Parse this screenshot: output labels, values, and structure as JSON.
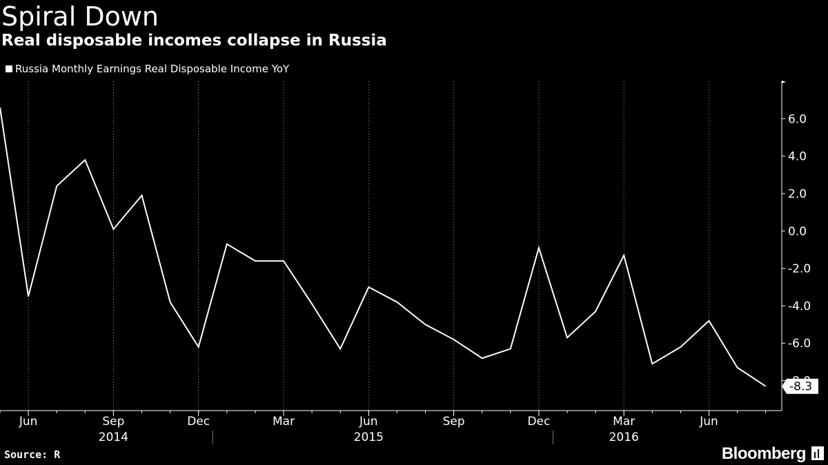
{
  "header": {
    "title": "Spiral Down",
    "subtitle": "Real disposable incomes collapse in Russia"
  },
  "footer": {
    "source": "Source: R",
    "brand": "Bloomberg"
  },
  "colors": {
    "background": "#000000",
    "line": "#ffffff",
    "grid": "#9a9a9a"
  },
  "chart_data": {
    "type": "line",
    "title": "Spiral Down",
    "subtitle": "Real disposable incomes collapse in Russia",
    "series": [
      {
        "name": "Russia Monthly Earnings Real Disposable Income YoY",
        "x": [
          "2014-05",
          "2014-06",
          "2014-07",
          "2014-08",
          "2014-09",
          "2014-10",
          "2014-11",
          "2014-12",
          "2015-01",
          "2015-02",
          "2015-03",
          "2015-04",
          "2015-05",
          "2015-06",
          "2015-07",
          "2015-08",
          "2015-09",
          "2015-10",
          "2015-11",
          "2015-12",
          "2016-01",
          "2016-02",
          "2016-03",
          "2016-04",
          "2016-05",
          "2016-06",
          "2016-07",
          "2016-08"
        ],
        "values": [
          6.6,
          -3.5,
          2.4,
          3.8,
          0.1,
          1.9,
          -3.8,
          -6.2,
          -0.7,
          -1.6,
          -1.6,
          -3.9,
          -6.3,
          -3.0,
          -3.8,
          -5.0,
          -5.8,
          -6.8,
          -6.3,
          -0.9,
          -5.7,
          -4.3,
          -1.3,
          -7.1,
          -6.2,
          -4.8,
          -7.3,
          -8.3
        ]
      }
    ],
    "last_value_label": "-8.3",
    "y_ticks": [
      "6.0",
      "4.0",
      "2.0",
      "0.0",
      "-2.0",
      "-4.0",
      "-6.0",
      "-8.0"
    ],
    "y_tick_values": [
      6,
      4,
      2,
      0,
      -2,
      -4,
      -6,
      -8
    ],
    "ylim": [
      -9.6,
      8.0
    ],
    "x_tick_labels": [
      {
        "label": "Jun",
        "x": "2014-06"
      },
      {
        "label": "Sep",
        "x": "2014-09"
      },
      {
        "label": "Dec",
        "x": "2014-12"
      },
      {
        "label": "Mar",
        "x": "2015-03"
      },
      {
        "label": "Jun",
        "x": "2015-06"
      },
      {
        "label": "Sep",
        "x": "2015-09"
      },
      {
        "label": "Dec",
        "x": "2015-12"
      },
      {
        "label": "Mar",
        "x": "2016-03"
      },
      {
        "label": "Jun",
        "x": "2016-06"
      }
    ],
    "year_labels": [
      {
        "label": "2014",
        "x": "2014-09"
      },
      {
        "label": "2015",
        "x": "2015-06"
      },
      {
        "label": "2016",
        "x": "2016-03"
      }
    ],
    "xlim": [
      "2014-05",
      "2016-09"
    ],
    "axis_position": "right",
    "grid": "vertical dotted"
  }
}
